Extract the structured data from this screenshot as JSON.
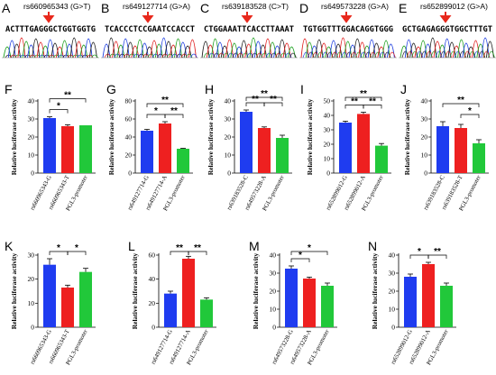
{
  "colors": {
    "blue": "#1f3cf0",
    "red": "#ee2020",
    "green": "#21c83a",
    "arrow": "#e8281c"
  },
  "chromatograms": [
    {
      "letter": "A",
      "title": "rs660965343 (G>T)",
      "sequence": "ACTTTGAGGGCTGGTGGTG"
    },
    {
      "letter": "B",
      "title": "rs649127714 (G>A)",
      "sequence": "TCACCCTCCGAATCCACCT"
    },
    {
      "letter": "C",
      "title": "rs639183528 (C>T)",
      "sequence": "CTGGAAATTCACCTTAAAT"
    },
    {
      "letter": "D",
      "title": "rs649573228 (G>A)",
      "sequence": "TGTGGTTTGGACAGGTGGG"
    },
    {
      "letter": "E",
      "title": "rs652899012 (G>A)",
      "sequence": "GCTGAGAGGGTGGCTTTGT"
    }
  ],
  "chart_data": [
    {
      "letter": "F",
      "type": "bar",
      "ylabel": "Relative luciferase activity",
      "ylim": [
        0,
        40
      ],
      "yticks": [
        0,
        10,
        20,
        30,
        40
      ],
      "categories": [
        "rs660965343-G",
        "rs660965343-T",
        "PGL3-promoter"
      ],
      "values": [
        30.5,
        26,
        26.5
      ],
      "errors": [
        0.7,
        0.8,
        0
      ],
      "significance": [
        {
          "from": 0,
          "to": 1,
          "label": "*",
          "level": 0
        },
        {
          "from": 0,
          "to": 2,
          "label": "**",
          "level": 1
        }
      ]
    },
    {
      "letter": "G",
      "type": "bar",
      "ylabel": "Relative luciferase activity",
      "ylim": [
        0,
        80
      ],
      "yticks": [
        0,
        20,
        40,
        60,
        80
      ],
      "categories": [
        "rs649127714-G",
        "rs649127714-A",
        "PGL3-promoter"
      ],
      "values": [
        47,
        55,
        27
      ],
      "errors": [
        1.5,
        2,
        0.5
      ],
      "significance": [
        {
          "from": 0,
          "to": 1,
          "label": "*",
          "level": 0
        },
        {
          "from": 1,
          "to": 2,
          "label": "**",
          "level": 0
        },
        {
          "from": 0,
          "to": 2,
          "label": "**",
          "level": 1
        }
      ]
    },
    {
      "letter": "H",
      "type": "bar",
      "ylabel": "Relative luciferase activity",
      "ylim": [
        0,
        40
      ],
      "yticks": [
        0,
        10,
        20,
        30,
        40
      ],
      "categories": [
        "rs639183528-C",
        "rs649573228-A",
        "PGL3-promoter"
      ],
      "values": [
        34,
        25,
        19.5
      ],
      "errors": [
        1,
        0.6,
        1.5
      ],
      "significance": [
        {
          "from": 0,
          "to": 1,
          "label": "**",
          "level": 0
        },
        {
          "from": 1,
          "to": 2,
          "label": "**",
          "level": 0
        },
        {
          "from": 0,
          "to": 2,
          "label": "**",
          "level": 1
        }
      ]
    },
    {
      "letter": "I",
      "type": "bar",
      "ylabel": "Relative luciferase activity",
      "ylim": [
        0,
        50
      ],
      "yticks": [
        0,
        10,
        20,
        30,
        40,
        50
      ],
      "categories": [
        "rs652899012-G",
        "rs652899012-A",
        "PGL3-promoter"
      ],
      "values": [
        35,
        41,
        19
      ],
      "errors": [
        1,
        1.2,
        1.5
      ],
      "significance": [
        {
          "from": 0,
          "to": 1,
          "label": "**",
          "level": 0
        },
        {
          "from": 1,
          "to": 2,
          "label": "**",
          "level": 0
        },
        {
          "from": 0,
          "to": 2,
          "label": "**",
          "level": 1
        }
      ]
    },
    {
      "letter": "J",
      "type": "bar",
      "ylabel": "Relative luciferase activity",
      "ylim": [
        0,
        40
      ],
      "yticks": [
        0,
        10,
        20,
        30,
        40
      ],
      "categories": [
        "rs639183528-C",
        "rs639183528-T",
        "PGL3-promoter"
      ],
      "values": [
        26,
        25,
        16.5
      ],
      "errors": [
        2.5,
        2,
        2
      ],
      "significance": [
        {
          "from": 1,
          "to": 2,
          "label": "*",
          "level": 0
        },
        {
          "from": 0,
          "to": 2,
          "label": "**",
          "level": 1
        }
      ]
    },
    {
      "letter": "K",
      "type": "bar",
      "ylabel": "Relative luciferase activity",
      "ylim": [
        0,
        30
      ],
      "yticks": [
        0,
        10,
        20,
        30
      ],
      "categories": [
        "rs660965343-G",
        "rs660965343-T",
        "PGL3-promoter"
      ],
      "values": [
        26,
        16.5,
        23
      ],
      "errors": [
        2.5,
        1,
        1.5
      ],
      "significance": [
        {
          "from": 0,
          "to": 1,
          "label": "*",
          "level": 0
        },
        {
          "from": 1,
          "to": 2,
          "label": "*",
          "level": 0
        }
      ]
    },
    {
      "letter": "L",
      "type": "bar",
      "ylabel": "Relative luciferase activity",
      "ylim": [
        0,
        60
      ],
      "yticks": [
        0,
        20,
        40,
        60
      ],
      "categories": [
        "rs649127714-G",
        "rs649127714-A",
        "PGL3-promoter"
      ],
      "values": [
        28,
        57,
        23
      ],
      "errors": [
        2,
        2,
        1.5
      ],
      "significance": [
        {
          "from": 0,
          "to": 1,
          "label": "**",
          "level": 0
        },
        {
          "from": 1,
          "to": 2,
          "label": "**",
          "level": 0
        }
      ]
    },
    {
      "letter": "M",
      "type": "bar",
      "ylabel": "Relative luciferase activity",
      "ylim": [
        0,
        40
      ],
      "yticks": [
        0,
        10,
        20,
        30,
        40
      ],
      "categories": [
        "rs649573228-G",
        "rs649573228-A",
        "PGL3-promoter"
      ],
      "values": [
        32.5,
        27,
        23
      ],
      "errors": [
        1.5,
        0.8,
        1.5
      ],
      "significance": [
        {
          "from": 0,
          "to": 1,
          "label": "*",
          "level": 0
        },
        {
          "from": 0,
          "to": 2,
          "label": "*",
          "level": 1
        }
      ]
    },
    {
      "letter": "N",
      "type": "bar",
      "ylabel": "Relative luciferase activity",
      "ylim": [
        0,
        40
      ],
      "yticks": [
        0,
        10,
        20,
        30,
        40
      ],
      "categories": [
        "rs652899012-G",
        "rs652899012-A",
        "PGL3-promoter"
      ],
      "values": [
        28,
        35,
        23
      ],
      "errors": [
        1.5,
        1,
        1.5
      ],
      "significance": [
        {
          "from": 0,
          "to": 1,
          "label": "*",
          "level": 0
        },
        {
          "from": 1,
          "to": 2,
          "label": "**",
          "level": 0
        }
      ]
    }
  ]
}
